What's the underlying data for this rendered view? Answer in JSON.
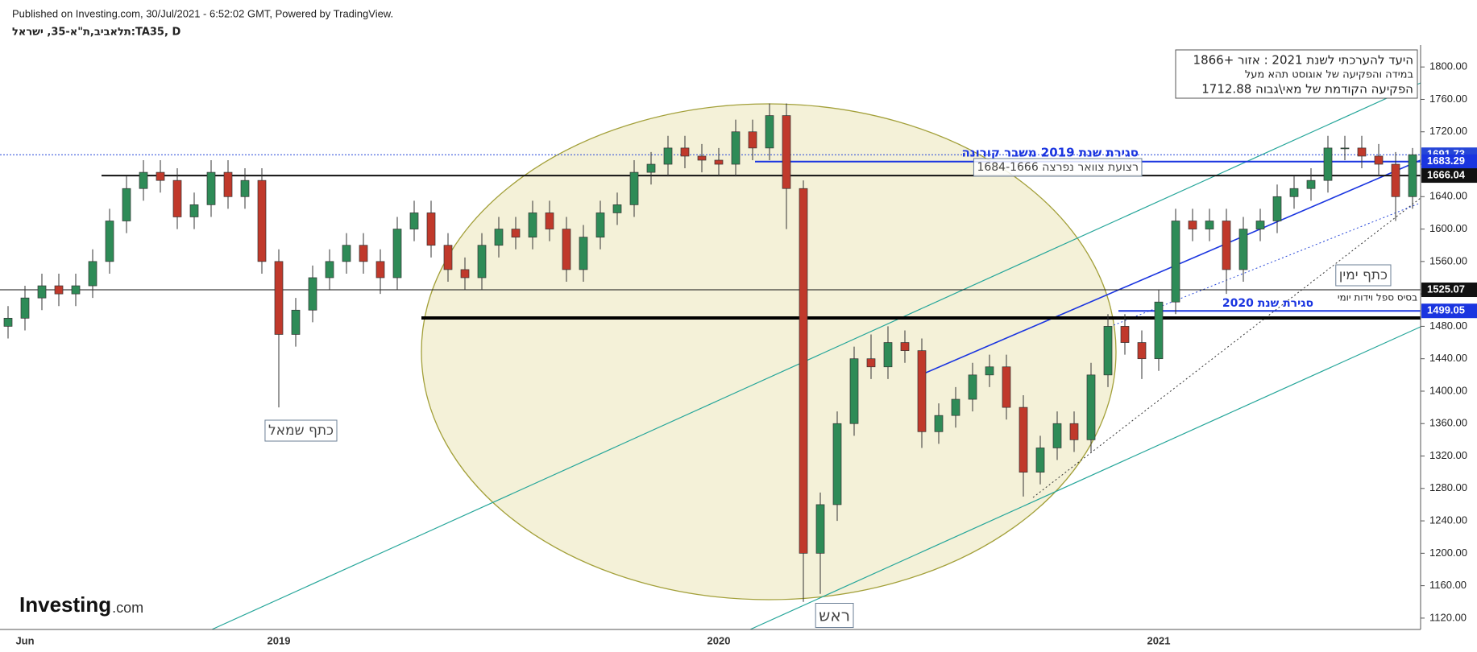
{
  "header": {
    "published": "Published on Investing.com, 30/Jul/2021 - 6:52:02 GMT, Powered by TradingView.",
    "symbol": "תלאביב,ת\"א-35, ישראל:TA35, D"
  },
  "logo": {
    "name": "Investing",
    "suffix": ".com"
  },
  "chart_data": {
    "type": "candlestick",
    "categories": [
      null,
      "Jun",
      null,
      null,
      null,
      null,
      null,
      null,
      null,
      null,
      null,
      null,
      null,
      null,
      null,
      null,
      "2019",
      null,
      null,
      null,
      null,
      null,
      null,
      null,
      null,
      null,
      null,
      null,
      null,
      null,
      null,
      null,
      null,
      null,
      null,
      null,
      null,
      null,
      null,
      null,
      null,
      null,
      "2020",
      null,
      null,
      null,
      null,
      null,
      null,
      null,
      null,
      null,
      null,
      null,
      null,
      null,
      null,
      null,
      null,
      null,
      null,
      null,
      null,
      null,
      null,
      null,
      null,
      null,
      "2021",
      null,
      null,
      null,
      null,
      null,
      null,
      null,
      null,
      null,
      null,
      null,
      null,
      null,
      null,
      null
    ],
    "open": [
      1480,
      1490,
      1515,
      1530,
      1520,
      1530,
      1560,
      1610,
      1650,
      1670,
      1660,
      1615,
      1630,
      1670,
      1640,
      1660,
      1560,
      1470,
      1500,
      1540,
      1560,
      1580,
      1560,
      1540,
      1600,
      1620,
      1580,
      1550,
      1540,
      1580,
      1600,
      1590,
      1620,
      1600,
      1550,
      1590,
      1620,
      1630,
      1670,
      1680,
      1700,
      1690,
      1685,
      1680,
      1720,
      1700,
      1740,
      1650,
      1200,
      1260,
      1360,
      1440,
      1430,
      1460,
      1450,
      1350,
      1370,
      1390,
      1420,
      1430,
      1380,
      1300,
      1330,
      1360,
      1340,
      1420,
      1480,
      1460,
      1440,
      1510,
      1610,
      1600,
      1610,
      1550,
      1600,
      1610,
      1640,
      1650,
      1660,
      1700,
      1700,
      1690,
      1680,
      1640
    ],
    "high": [
      1505,
      1530,
      1545,
      1545,
      1545,
      1575,
      1625,
      1665,
      1685,
      1685,
      1675,
      1645,
      1685,
      1685,
      1675,
      1675,
      1575,
      1515,
      1555,
      1575,
      1595,
      1595,
      1575,
      1615,
      1635,
      1635,
      1595,
      1565,
      1595,
      1615,
      1615,
      1635,
      1635,
      1615,
      1605,
      1635,
      1645,
      1685,
      1695,
      1715,
      1715,
      1705,
      1700,
      1735,
      1735,
      1755,
      1755,
      1660,
      1275,
      1375,
      1455,
      1470,
      1480,
      1475,
      1465,
      1385,
      1405,
      1435,
      1445,
      1445,
      1395,
      1345,
      1375,
      1375,
      1435,
      1495,
      1495,
      1475,
      1525,
      1625,
      1625,
      1625,
      1625,
      1615,
      1625,
      1655,
      1665,
      1675,
      1715,
      1715,
      1715,
      1705,
      1695,
      1700
    ],
    "low": [
      1465,
      1475,
      1500,
      1505,
      1505,
      1515,
      1545,
      1595,
      1635,
      1645,
      1600,
      1600,
      1615,
      1625,
      1625,
      1545,
      1380,
      1455,
      1485,
      1525,
      1545,
      1545,
      1520,
      1525,
      1585,
      1565,
      1535,
      1525,
      1525,
      1565,
      1575,
      1575,
      1585,
      1535,
      1535,
      1575,
      1605,
      1615,
      1655,
      1665,
      1675,
      1670,
      1665,
      1665,
      1685,
      1685,
      1600,
      1140,
      1150,
      1240,
      1345,
      1415,
      1415,
      1435,
      1330,
      1335,
      1355,
      1375,
      1405,
      1365,
      1270,
      1285,
      1315,
      1325,
      1325,
      1405,
      1445,
      1415,
      1425,
      1495,
      1585,
      1585,
      1520,
      1535,
      1585,
      1595,
      1625,
      1635,
      1645,
      1685,
      1675,
      1665,
      1610,
      1625
    ],
    "close": [
      1490,
      1515,
      1530,
      1520,
      1530,
      1560,
      1610,
      1650,
      1670,
      1660,
      1615,
      1630,
      1670,
      1640,
      1660,
      1560,
      1470,
      1500,
      1540,
      1560,
      1580,
      1560,
      1540,
      1600,
      1620,
      1580,
      1550,
      1540,
      1580,
      1600,
      1590,
      1620,
      1600,
      1550,
      1590,
      1620,
      1630,
      1670,
      1680,
      1700,
      1690,
      1685,
      1680,
      1720,
      1700,
      1740,
      1650,
      1200,
      1260,
      1360,
      1440,
      1430,
      1460,
      1450,
      1350,
      1370,
      1390,
      1420,
      1430,
      1380,
      1300,
      1330,
      1360,
      1340,
      1420,
      1480,
      1460,
      1440,
      1510,
      1610,
      1600,
      1610,
      1550,
      1600,
      1610,
      1640,
      1650,
      1660,
      1700,
      1700,
      1690,
      1680,
      1640,
      1691.73
    ],
    "up_color": "#2e8b57",
    "down_color": "#c0392b",
    "ylim": [
      1106,
      1827
    ],
    "yticks": [
      {
        "value": 1120,
        "label": "1120.00"
      },
      {
        "value": 1160,
        "label": "1160.00"
      },
      {
        "value": 1200,
        "label": "1200.00"
      },
      {
        "value": 1240,
        "label": "1240.00"
      },
      {
        "value": 1280,
        "label": "1280.00"
      },
      {
        "value": 1320,
        "label": "1320.00"
      },
      {
        "value": 1360,
        "label": "1360.00"
      },
      {
        "value": 1400,
        "label": "1400.00"
      },
      {
        "value": 1440,
        "label": "1440.00"
      },
      {
        "value": 1480,
        "label": "1480.00"
      },
      {
        "value": 1520,
        "label": "1520.00"
      },
      {
        "value": 1560,
        "label": "1560.00"
      },
      {
        "value": 1600,
        "label": "1600.00"
      },
      {
        "value": 1640,
        "label": "1640.00"
      },
      {
        "value": 1680,
        "label": "1680.00"
      },
      {
        "value": 1720,
        "label": "1720.00"
      },
      {
        "value": 1760,
        "label": "1760.00"
      },
      {
        "value": 1800,
        "label": "1800.00"
      }
    ],
    "price_lines": [
      {
        "value": 1691.73,
        "color": "#2747d8"
      },
      {
        "value": 1683.29,
        "color": "#1a35e0"
      },
      {
        "value": 1666.04,
        "color": "#111111"
      },
      {
        "value": 1525.07,
        "color": "#111111"
      },
      {
        "value": 1499.05,
        "color": "#1a35e0"
      }
    ],
    "target_note": [
      "היעד להערכתי  לשנת 2021 : אזור +1866",
      "במידה והפקיעה של אוגוסט תהא מעל",
      "הפקיעה הקודמת של מאי\\גבוה 1712.88"
    ],
    "annotations": [
      "סגירת  שנת 2019 משבר קורונה",
      "רצועת צוואר נפרצה 1684-1666",
      "בסיס ספל וידות יומי",
      "סגירת  שנת 2020",
      "כתף ימין",
      "כתף שמאל",
      "ראש"
    ]
  }
}
